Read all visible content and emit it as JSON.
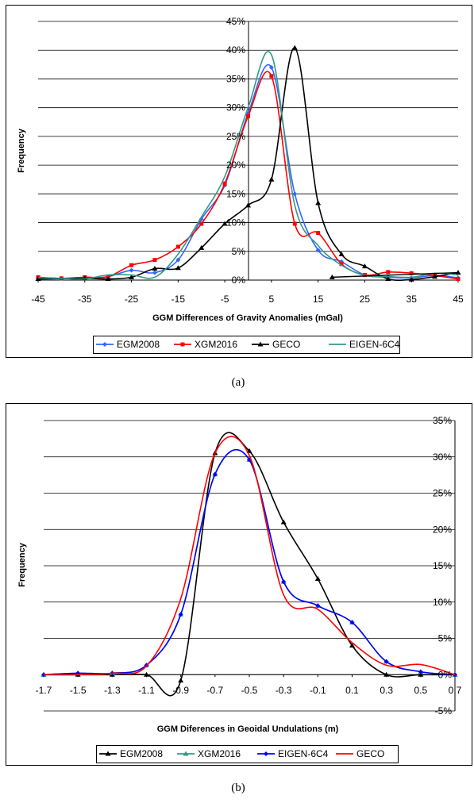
{
  "chart_data": [
    {
      "type": "line",
      "panel_caption": "(a)",
      "xlabel": "GGM Differences of Gravity Anomalies (mGal)",
      "ylabel": "Frequency",
      "xlim": [
        -45,
        45
      ],
      "ylim": [
        0,
        45
      ],
      "x_ticks": [
        "-45",
        "-35",
        "-25",
        "-15",
        "-5",
        "5",
        "15",
        "25",
        "35",
        "45"
      ],
      "y_ticks": [
        "0%",
        "5%",
        "10%",
        "15%",
        "20%",
        "25%",
        "30%",
        "35%",
        "40%",
        "45%"
      ],
      "grid": "horizontal",
      "legend_position": "bottom",
      "series": [
        {
          "name": "EGM2008",
          "color": "#3366ff",
          "marker": "diamond",
          "x": [
            -45,
            -40,
            -35,
            -30,
            -25,
            -20,
            -15,
            -10,
            -5,
            0,
            5,
            10,
            15,
            20,
            25,
            30,
            35,
            40,
            45
          ],
          "y": [
            0.4,
            0.3,
            0.3,
            0.6,
            1.7,
            1.3,
            3.5,
            10.6,
            16.5,
            29.0,
            37.0,
            15.0,
            5.2,
            3.2,
            0.9,
            0.5,
            0.4,
            0.8,
            0.4
          ]
        },
        {
          "name": "XGM2016",
          "color": "#ff0000",
          "marker": "square",
          "x": [
            -45,
            -40,
            -35,
            -30,
            -25,
            -20,
            -15,
            -10,
            -5,
            0,
            5,
            10,
            15,
            20,
            25,
            30,
            35,
            40,
            45
          ],
          "y": [
            0.5,
            0.3,
            0.5,
            0.6,
            2.6,
            3.5,
            5.8,
            9.8,
            16.8,
            28.5,
            35.5,
            9.8,
            8.2,
            2.8,
            0.9,
            1.4,
            1.2,
            0.8,
            0.2
          ]
        },
        {
          "name": "GECO",
          "color": "#000000",
          "marker": "triangle",
          "x": [
            -45,
            -35,
            -30,
            -25,
            -20,
            -15,
            -10,
            -5,
            0,
            5,
            10,
            15,
            20,
            25,
            30,
            35,
            40,
            45
          ],
          "y": [
            0.2,
            0.3,
            0.2,
            0.5,
            2.0,
            2.1,
            5.6,
            9.8,
            13.0,
            17.5,
            40.4,
            13.4,
            4.5,
            2.4,
            0.2,
            0.1,
            0.6,
            1.3
          ]
        },
        {
          "name": "EIGEN-6C4",
          "color": "#339988",
          "marker": "none",
          "x": [
            -45,
            -40,
            -35,
            -30,
            -25,
            -20,
            -15,
            -10,
            -5,
            0,
            5,
            10,
            15,
            20,
            25,
            30,
            35,
            40,
            45
          ],
          "y": [
            0.4,
            0.3,
            0.2,
            0.9,
            0.9,
            0.5,
            4.5,
            11.0,
            18.0,
            30.0,
            39.2,
            13.0,
            6.0,
            2.6,
            0.8,
            0.6,
            0.5,
            1.2,
            0.9
          ]
        }
      ],
      "extra_segment": {
        "series": "GECO",
        "x": [
          18,
          45
        ],
        "y": [
          0.5,
          1.3
        ]
      }
    },
    {
      "type": "line",
      "panel_caption": "(b)",
      "xlabel": "GGM Diferences in Geoidal Undulations (m)",
      "ylabel": "Frequency",
      "xlim": [
        -1.7,
        0.7
      ],
      "ylim": [
        -5,
        35
      ],
      "x_ticks": [
        "-1.7",
        "-1.5",
        "-1.3",
        "-1.1",
        "-0.9",
        "-0.7",
        "-0.5",
        "-0.3",
        "-0.1",
        "0.1",
        "0.3",
        "0.5",
        "0.7"
      ],
      "y_ticks": [
        "-5%",
        "0%",
        "5%",
        "10%",
        "15%",
        "20%",
        "25%",
        "30%",
        "35%"
      ],
      "grid": "horizontal",
      "legend_position": "bottom",
      "series": [
        {
          "name": "EGM2008",
          "color": "#000000",
          "marker": "triangle",
          "x": [
            -1.7,
            -1.5,
            -1.3,
            -1.1,
            -0.9,
            -0.7,
            -0.5,
            -0.3,
            -0.1,
            0.1,
            0.3,
            0.5,
            0.7
          ],
          "y": [
            0.0,
            0.0,
            0.0,
            0.0,
            -0.8,
            30.5,
            30.8,
            21.0,
            13.2,
            4.0,
            0.0,
            0.0,
            0.0
          ]
        },
        {
          "name": "XGM2016",
          "color": "#339988",
          "marker": "triangle",
          "x": [
            -1.7,
            -1.5,
            -1.3,
            -1.1,
            -0.9,
            -0.7,
            -0.5,
            -0.3,
            -0.1,
            0.1,
            0.3,
            0.5,
            0.7
          ],
          "y": [
            0.0,
            0.2,
            0.2,
            1.3,
            8.3,
            27.6,
            29.6,
            12.8,
            9.5,
            7.2,
            1.8,
            0.4,
            0.0
          ]
        },
        {
          "name": "EIGEN-6C4",
          "color": "#0000ff",
          "marker": "diamond",
          "x": [
            -1.7,
            -1.5,
            -1.3,
            -1.1,
            -0.9,
            -0.7,
            -0.5,
            -0.3,
            -0.1,
            0.1,
            0.3,
            0.5,
            0.7
          ],
          "y": [
            0.0,
            0.2,
            0.2,
            1.3,
            8.3,
            27.6,
            29.6,
            12.8,
            9.5,
            7.2,
            1.8,
            0.4,
            0.0
          ]
        },
        {
          "name": "GECO",
          "color": "#ff0000",
          "marker": "none",
          "x": [
            -1.7,
            -1.5,
            -1.3,
            -1.1,
            -0.9,
            -0.7,
            -0.5,
            -0.3,
            -0.1,
            0.1,
            0.3,
            0.5,
            0.7
          ],
          "y": [
            0.0,
            0.0,
            0.2,
            1.2,
            10.5,
            30.5,
            30.2,
            11.0,
            9.0,
            4.4,
            1.3,
            1.4,
            0.0
          ]
        }
      ]
    }
  ]
}
